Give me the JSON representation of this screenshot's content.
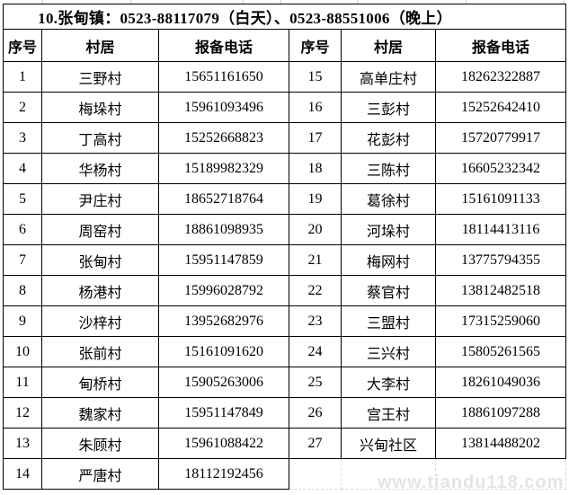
{
  "page": {
    "watermark": "www.tiandu118.com"
  },
  "table": {
    "title": "10.张甸镇：0523-88117079（白天）、0523-88551006（晚上）",
    "columns": [
      "序号",
      "村居",
      "报备电话"
    ],
    "left_rows": [
      {
        "no": "1",
        "village": "三野村",
        "phone": "15651161650"
      },
      {
        "no": "2",
        "village": "梅垛村",
        "phone": "15961093496"
      },
      {
        "no": "3",
        "village": "丁高村",
        "phone": "15252668823"
      },
      {
        "no": "4",
        "village": "华杨村",
        "phone": "15189982329"
      },
      {
        "no": "5",
        "village": "尹庄村",
        "phone": "18652718764"
      },
      {
        "no": "6",
        "village": "周窑村",
        "phone": "18861098935"
      },
      {
        "no": "7",
        "village": "张甸村",
        "phone": "15951147859"
      },
      {
        "no": "8",
        "village": "杨港村",
        "phone": "15996028792"
      },
      {
        "no": "9",
        "village": "沙梓村",
        "phone": "13952682976"
      },
      {
        "no": "10",
        "village": "张前村",
        "phone": "15161091620"
      },
      {
        "no": "11",
        "village": "甸桥村",
        "phone": "15905263006"
      },
      {
        "no": "12",
        "village": "魏家村",
        "phone": "15951147849"
      },
      {
        "no": "13",
        "village": "朱顾村",
        "phone": "15961088422"
      },
      {
        "no": "14",
        "village": "严唐村",
        "phone": "18112192456"
      }
    ],
    "right_rows": [
      {
        "no": "15",
        "village": "高单庄村",
        "phone": "18262322887"
      },
      {
        "no": "16",
        "village": "三彭村",
        "phone": "15252642410"
      },
      {
        "no": "17",
        "village": "花彭村",
        "phone": "15720779917"
      },
      {
        "no": "18",
        "village": "三陈村",
        "phone": "16605232342"
      },
      {
        "no": "19",
        "village": "葛徐村",
        "phone": "15161091133"
      },
      {
        "no": "20",
        "village": "河垛村",
        "phone": "18114413116"
      },
      {
        "no": "21",
        "village": "梅网村",
        "phone": "13775794355"
      },
      {
        "no": "22",
        "village": "蔡官村",
        "phone": "13812482518"
      },
      {
        "no": "23",
        "village": "三盟村",
        "phone": "17315259060"
      },
      {
        "no": "24",
        "village": "三兴村",
        "phone": "15805261565"
      },
      {
        "no": "25",
        "village": "大李村",
        "phone": "18261049036"
      },
      {
        "no": "26",
        "village": "宫王村",
        "phone": "18861097288"
      },
      {
        "no": "27",
        "village": "兴甸社区",
        "phone": "13814488202"
      }
    ]
  },
  "colors": {
    "border": "#000000",
    "text": "#000000",
    "background": "#ffffff",
    "gridline": "#d8d8d8",
    "watermark": "#e4e4e4"
  }
}
